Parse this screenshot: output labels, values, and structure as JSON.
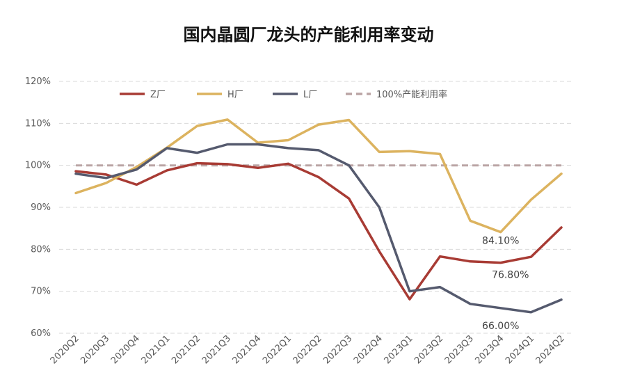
{
  "chart_data": {
    "type": "line",
    "title": "国内晶圆厂龙头的产能利用率变动",
    "xlabel": "",
    "ylabel": "",
    "categories": [
      "2020Q2",
      "2020Q3",
      "2020Q4",
      "2021Q1",
      "2021Q2",
      "2021Q3",
      "2021Q4",
      "2022Q1",
      "2022Q2",
      "2022Q3",
      "2022Q4",
      "2023Q1",
      "2023Q2",
      "2023Q3",
      "2023Q4",
      "2024Q1",
      "2024Q2"
    ],
    "ylim": [
      60,
      120
    ],
    "yticks": [
      "60%",
      "70%",
      "80%",
      "90%",
      "100%",
      "110%",
      "120%"
    ],
    "grid": true,
    "legend_position": "top",
    "series": [
      {
        "name": "Z厂",
        "color": "#a83b34",
        "values": [
          98.6,
          97.8,
          95.4,
          98.8,
          100.5,
          100.3,
          99.4,
          100.4,
          97.2,
          92.1,
          79.5,
          68.1,
          78.3,
          77.1,
          76.8,
          78.2,
          85.2
        ]
      },
      {
        "name": "H厂",
        "color": "#dcb35f",
        "values": [
          93.4,
          95.8,
          99.6,
          104.2,
          109.4,
          110.9,
          105.4,
          106.0,
          109.7,
          110.8,
          103.2,
          103.4,
          102.7,
          86.8,
          84.1,
          91.8,
          98.0
        ]
      },
      {
        "name": "L厂",
        "color": "#555a6e",
        "values": [
          98.0,
          97.0,
          99.0,
          104.1,
          103.0,
          105.0,
          105.0,
          104.1,
          103.6,
          100.0,
          90.0,
          70.0,
          71.0,
          67.0,
          66.0,
          65.0,
          68.0
        ]
      },
      {
        "name": "100%产能利用率",
        "color": "#bba5a5",
        "dashed": true,
        "values": [
          100,
          100,
          100,
          100,
          100,
          100,
          100,
          100,
          100,
          100,
          100,
          100,
          100,
          100,
          100,
          100,
          100
        ]
      }
    ],
    "annotations": [
      {
        "text": "84.10%",
        "series": "H厂",
        "x": "2023Q4",
        "y": 84.1
      },
      {
        "text": "76.80%",
        "series": "Z厂",
        "x": "2023Q4",
        "y": 76.8
      },
      {
        "text": "66.00%",
        "series": "L厂",
        "x": "2023Q4",
        "y": 66.0
      }
    ]
  }
}
